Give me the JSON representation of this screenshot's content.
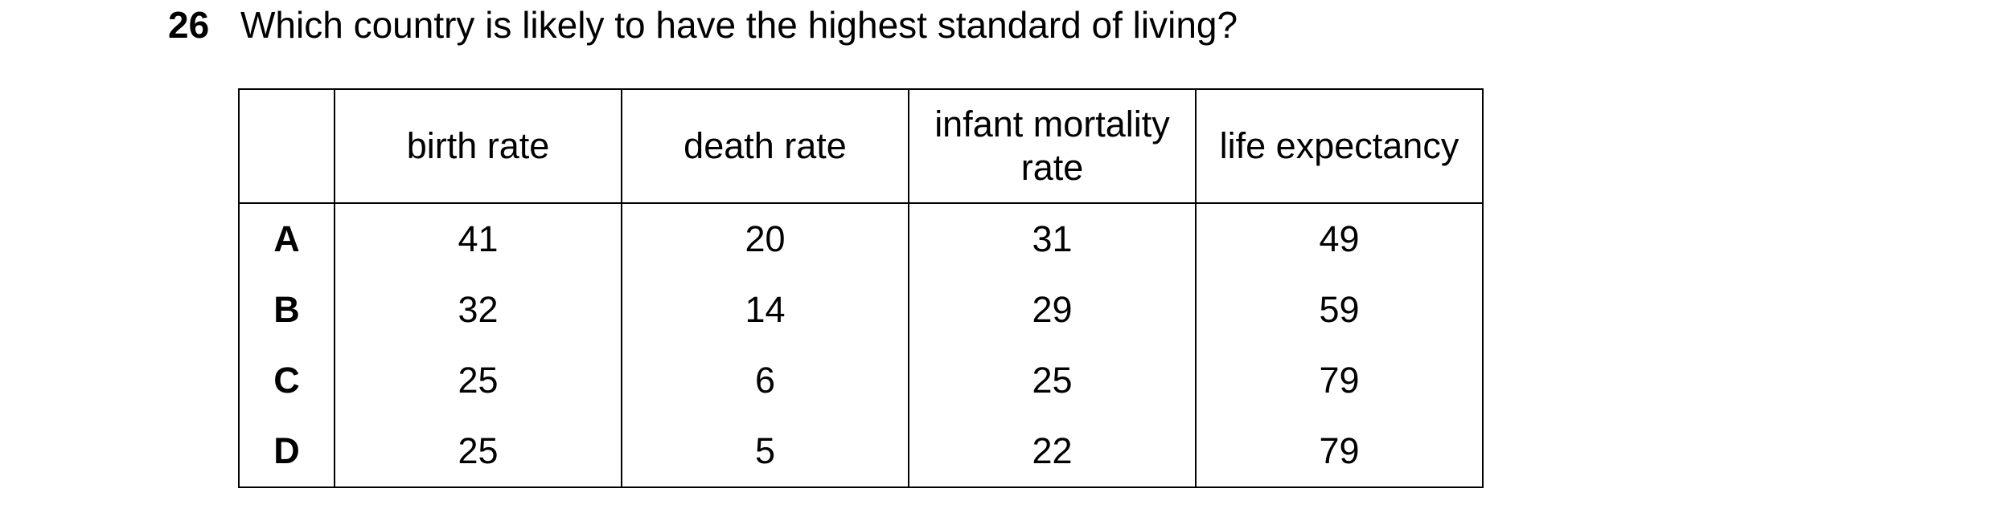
{
  "question": {
    "number": "26",
    "text": "Which country is likely to have the highest standard of living?"
  },
  "table": {
    "headers": [
      "",
      "birth rate",
      "death rate",
      "infant mortality rate",
      "life expectancy"
    ],
    "rows": [
      {
        "label": "A",
        "values": [
          "41",
          "20",
          "31",
          "49"
        ]
      },
      {
        "label": "B",
        "values": [
          "32",
          "14",
          "29",
          "59"
        ]
      },
      {
        "label": "C",
        "values": [
          "25",
          "6",
          "25",
          "79"
        ]
      },
      {
        "label": "D",
        "values": [
          "25",
          "5",
          "22",
          "79"
        ]
      }
    ]
  }
}
